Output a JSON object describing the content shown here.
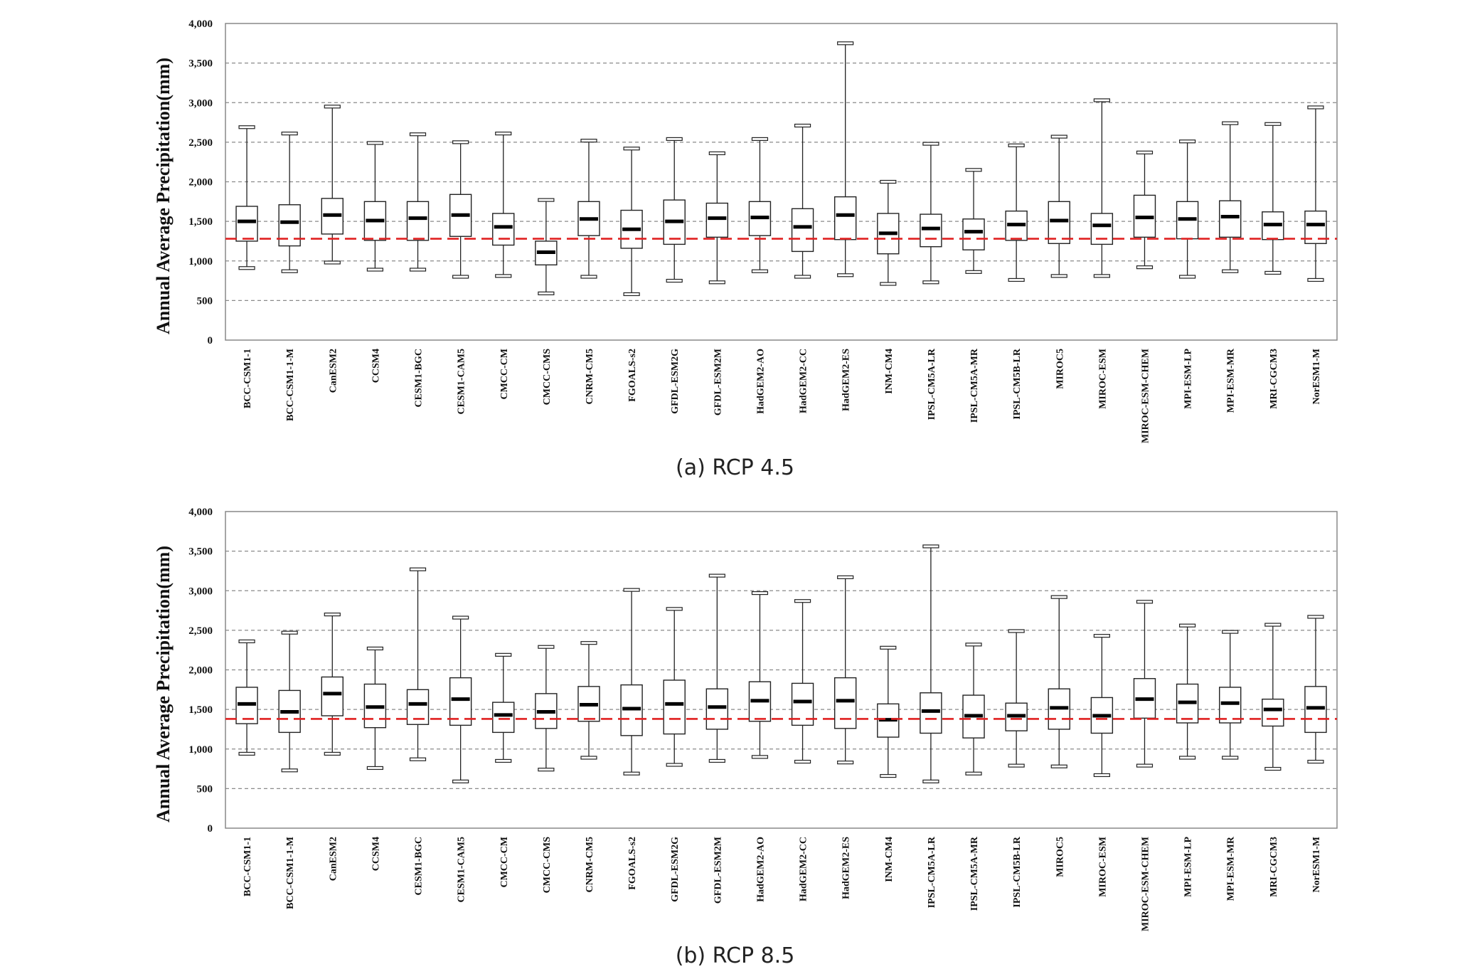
{
  "chart_data": [
    {
      "type": "box",
      "caption": "(a) RCP 4.5",
      "ylabel": "Annual Average Precipitation(mm)",
      "ylim": [
        0,
        4000
      ],
      "yticks": [
        0,
        500,
        1000,
        1500,
        2000,
        2500,
        3000,
        3500,
        4000
      ],
      "ytick_labels": [
        "0",
        "500",
        "1,000",
        "1,500",
        "2,000",
        "2,500",
        "3,000",
        "3,500",
        "4,000"
      ],
      "grid": "horizontal-dashed",
      "reference_line": {
        "value": 1280,
        "color": "#e02020",
        "style": "dashed"
      },
      "categories": [
        "BCC-CSM1-1",
        "BCC-CSM1-1-M",
        "CanESM2",
        "CCSM4",
        "CESM1-BGC",
        "CESM1-CAM5",
        "CMCC-CM",
        "CMCC-CMS",
        "CNRM-CM5",
        "FGOALS-s2",
        "GFDL-ESM2G",
        "GFDL-ESM2M",
        "HadGEM2-AO",
        "HadGEM2-CC",
        "HadGEM2-ES",
        "INM-CM4",
        "IPSL-CM5A-LR",
        "IPSL-CM5A-MR",
        "IPSL-CM5B-LR",
        "MIROC5",
        "MIROC-ESM",
        "MIROC-ESM-CHEM",
        "MPI-ESM-LP",
        "MPI-ESM-MR",
        "MRI-CGCM3",
        "NorESM1-M"
      ],
      "boxes": [
        {
          "min": 910,
          "q1": 1250,
          "median": 1500,
          "q3": 1690,
          "max": 2690
        },
        {
          "min": 870,
          "q1": 1190,
          "median": 1490,
          "q3": 1710,
          "max": 2610
        },
        {
          "min": 980,
          "q1": 1340,
          "median": 1580,
          "q3": 1790,
          "max": 2950
        },
        {
          "min": 890,
          "q1": 1260,
          "median": 1510,
          "q3": 1750,
          "max": 2490
        },
        {
          "min": 890,
          "q1": 1260,
          "median": 1540,
          "q3": 1750,
          "max": 2600
        },
        {
          "min": 800,
          "q1": 1310,
          "median": 1580,
          "q3": 1840,
          "max": 2500
        },
        {
          "min": 810,
          "q1": 1200,
          "median": 1430,
          "q3": 1600,
          "max": 2610
        },
        {
          "min": 590,
          "q1": 950,
          "median": 1110,
          "q3": 1250,
          "max": 1770
        },
        {
          "min": 800,
          "q1": 1320,
          "median": 1530,
          "q3": 1750,
          "max": 2520
        },
        {
          "min": 580,
          "q1": 1160,
          "median": 1400,
          "q3": 1640,
          "max": 2420
        },
        {
          "min": 750,
          "q1": 1210,
          "median": 1500,
          "q3": 1770,
          "max": 2540
        },
        {
          "min": 730,
          "q1": 1300,
          "median": 1540,
          "q3": 1730,
          "max": 2360
        },
        {
          "min": 870,
          "q1": 1320,
          "median": 1550,
          "q3": 1750,
          "max": 2540
        },
        {
          "min": 800,
          "q1": 1120,
          "median": 1430,
          "q3": 1660,
          "max": 2710
        },
        {
          "min": 820,
          "q1": 1270,
          "median": 1580,
          "q3": 1810,
          "max": 3750
        },
        {
          "min": 710,
          "q1": 1090,
          "median": 1350,
          "q3": 1600,
          "max": 2000
        },
        {
          "min": 730,
          "q1": 1180,
          "median": 1410,
          "q3": 1590,
          "max": 2480
        },
        {
          "min": 860,
          "q1": 1140,
          "median": 1370,
          "q3": 1530,
          "max": 2150
        },
        {
          "min": 760,
          "q1": 1260,
          "median": 1460,
          "q3": 1630,
          "max": 2460
        },
        {
          "min": 810,
          "q1": 1220,
          "median": 1510,
          "q3": 1750,
          "max": 2570
        },
        {
          "min": 810,
          "q1": 1210,
          "median": 1450,
          "q3": 1600,
          "max": 3030
        },
        {
          "min": 920,
          "q1": 1300,
          "median": 1550,
          "q3": 1830,
          "max": 2370
        },
        {
          "min": 800,
          "q1": 1280,
          "median": 1530,
          "q3": 1750,
          "max": 2510
        },
        {
          "min": 870,
          "q1": 1300,
          "median": 1560,
          "q3": 1760,
          "max": 2740
        },
        {
          "min": 850,
          "q1": 1270,
          "median": 1460,
          "q3": 1620,
          "max": 2730
        },
        {
          "min": 760,
          "q1": 1220,
          "median": 1460,
          "q3": 1630,
          "max": 2940
        }
      ]
    },
    {
      "type": "box",
      "caption": "(b) RCP 8.5",
      "ylabel": "Annual Average Precipitation(mm)",
      "ylim": [
        0,
        4000
      ],
      "yticks": [
        0,
        500,
        1000,
        1500,
        2000,
        2500,
        3000,
        3500,
        4000
      ],
      "ytick_labels": [
        "0",
        "500",
        "1,000",
        "1,500",
        "2,000",
        "2,500",
        "3,000",
        "3,500",
        "4,000"
      ],
      "grid": "horizontal-dashed",
      "reference_line": {
        "value": 1380,
        "color": "#e02020",
        "style": "dashed"
      },
      "categories": [
        "BCC-CSM1-1",
        "BCC-CSM1-1-M",
        "CanESM2",
        "CCSM4",
        "CESM1-BGC",
        "CESM1-CAM5",
        "CMCC-CM",
        "CMCC-CMS",
        "CNRM-CM5",
        "FGOALS-s2",
        "GFDL-ESM2G",
        "GFDL-ESM2M",
        "HadGEM2-AO",
        "HadGEM2-CC",
        "HadGEM2-ES",
        "INM-CM4",
        "IPSL-CM5A-LR",
        "IPSL-CM5A-MR",
        "IPSL-CM5B-LR",
        "MIROC5",
        "MIROC-ESM",
        "MIROC-ESM-CHEM",
        "MPI-ESM-LP",
        "MPI-ESM-MR",
        "MRI-CGCM3",
        "NorESM1-M"
      ],
      "boxes": [
        {
          "min": 940,
          "q1": 1320,
          "median": 1570,
          "q3": 1780,
          "max": 2360
        },
        {
          "min": 730,
          "q1": 1210,
          "median": 1470,
          "q3": 1740,
          "max": 2470
        },
        {
          "min": 940,
          "q1": 1420,
          "median": 1700,
          "q3": 1910,
          "max": 2700
        },
        {
          "min": 760,
          "q1": 1270,
          "median": 1530,
          "q3": 1820,
          "max": 2270
        },
        {
          "min": 870,
          "q1": 1310,
          "median": 1570,
          "q3": 1750,
          "max": 3270
        },
        {
          "min": 590,
          "q1": 1300,
          "median": 1630,
          "q3": 1900,
          "max": 2660
        },
        {
          "min": 850,
          "q1": 1210,
          "median": 1430,
          "q3": 1590,
          "max": 2190
        },
        {
          "min": 740,
          "q1": 1260,
          "median": 1470,
          "q3": 1700,
          "max": 2290
        },
        {
          "min": 890,
          "q1": 1350,
          "median": 1560,
          "q3": 1790,
          "max": 2340
        },
        {
          "min": 690,
          "q1": 1170,
          "median": 1510,
          "q3": 1810,
          "max": 3010
        },
        {
          "min": 800,
          "q1": 1190,
          "median": 1570,
          "q3": 1870,
          "max": 2770
        },
        {
          "min": 850,
          "q1": 1250,
          "median": 1530,
          "q3": 1760,
          "max": 3190
        },
        {
          "min": 900,
          "q1": 1350,
          "median": 1610,
          "q3": 1850,
          "max": 2970
        },
        {
          "min": 840,
          "q1": 1300,
          "median": 1600,
          "q3": 1830,
          "max": 2870
        },
        {
          "min": 830,
          "q1": 1260,
          "median": 1610,
          "q3": 1900,
          "max": 3170
        },
        {
          "min": 660,
          "q1": 1150,
          "median": 1370,
          "q3": 1570,
          "max": 2280
        },
        {
          "min": 590,
          "q1": 1200,
          "median": 1480,
          "q3": 1710,
          "max": 3560
        },
        {
          "min": 690,
          "q1": 1140,
          "median": 1420,
          "q3": 1680,
          "max": 2320
        },
        {
          "min": 790,
          "q1": 1230,
          "median": 1420,
          "q3": 1580,
          "max": 2490
        },
        {
          "min": 780,
          "q1": 1250,
          "median": 1520,
          "q3": 1760,
          "max": 2920
        },
        {
          "min": 670,
          "q1": 1200,
          "median": 1420,
          "q3": 1650,
          "max": 2430
        },
        {
          "min": 790,
          "q1": 1390,
          "median": 1630,
          "q3": 1890,
          "max": 2860
        },
        {
          "min": 890,
          "q1": 1330,
          "median": 1590,
          "q3": 1820,
          "max": 2560
        },
        {
          "min": 890,
          "q1": 1330,
          "median": 1580,
          "q3": 1780,
          "max": 2480
        },
        {
          "min": 750,
          "q1": 1290,
          "median": 1500,
          "q3": 1630,
          "max": 2570
        },
        {
          "min": 840,
          "q1": 1210,
          "median": 1520,
          "q3": 1790,
          "max": 2670
        }
      ]
    }
  ]
}
